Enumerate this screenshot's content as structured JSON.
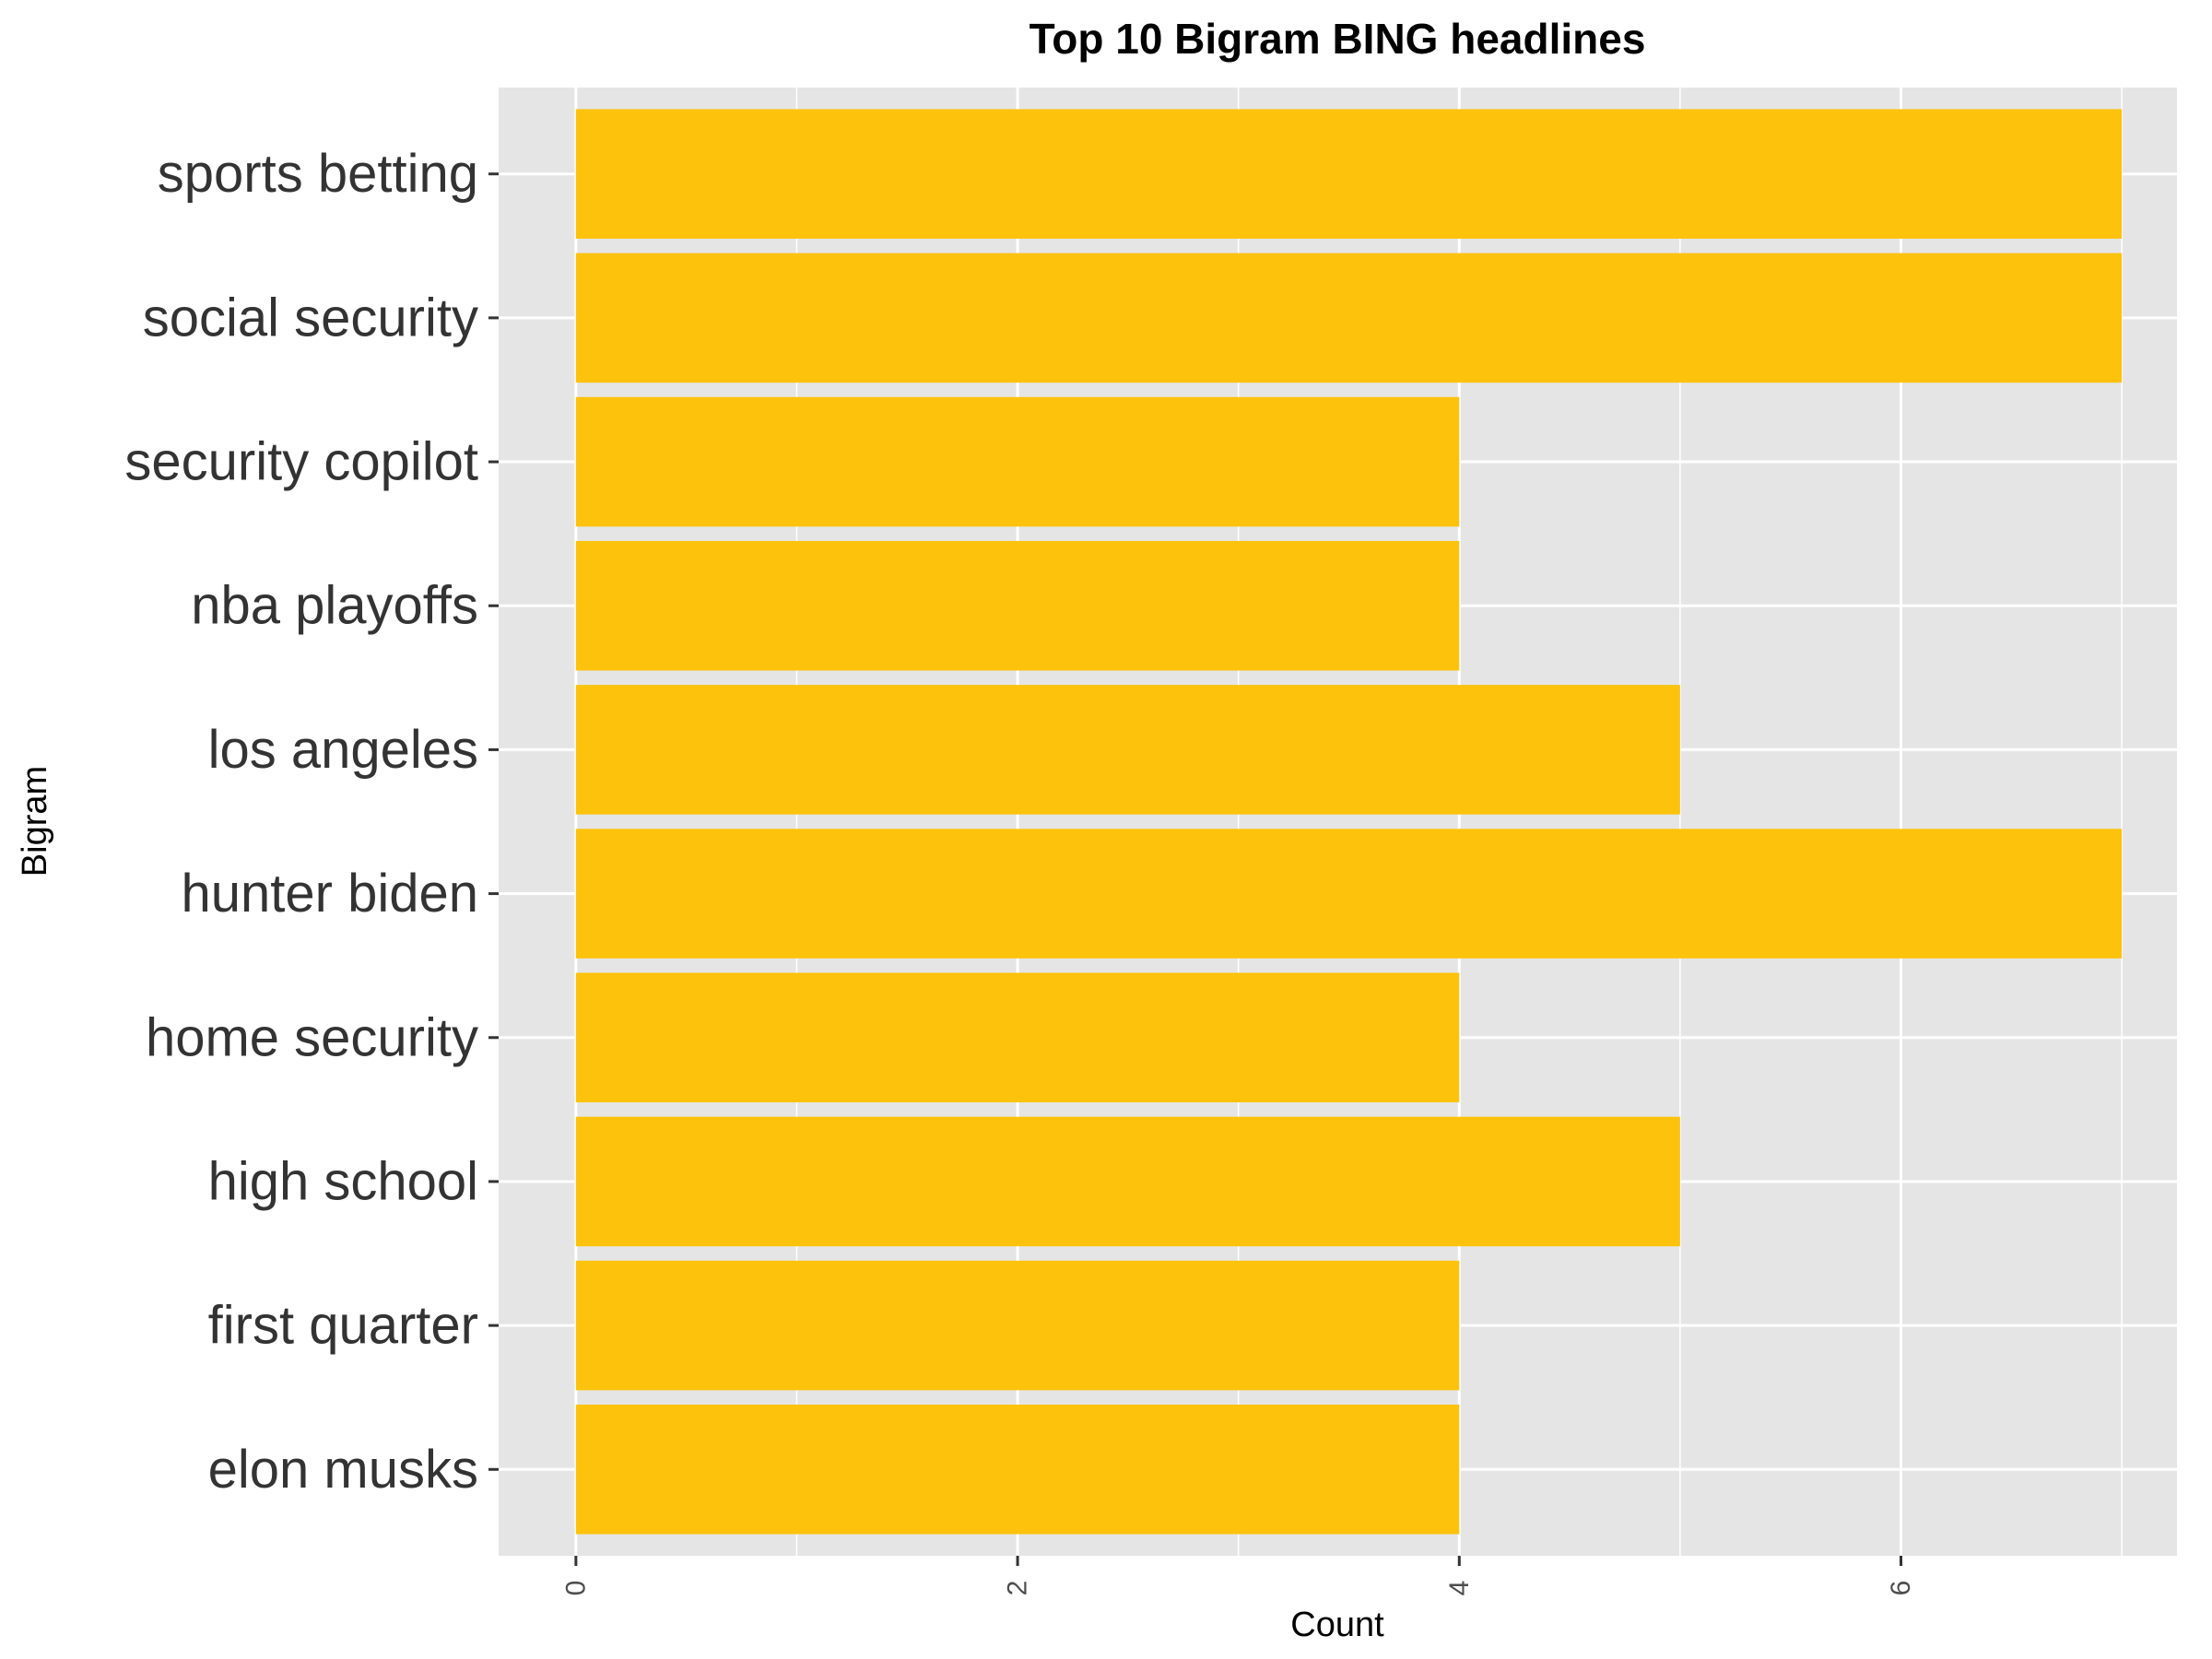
{
  "chart_data": {
    "type": "bar",
    "orientation": "horizontal",
    "title": "Top 10 Bigram BING headlines",
    "xlabel": "Count",
    "ylabel": "Bigram",
    "categories": [
      "sports betting",
      "social security",
      "security copilot",
      "nba playoffs",
      "los angeles",
      "hunter biden",
      "home security",
      "high school",
      "first quarter",
      "elon musks"
    ],
    "values": [
      7,
      7,
      4,
      4,
      5,
      7,
      4,
      5,
      4,
      4
    ],
    "x_ticks": [
      "0",
      "2",
      "4",
      "6"
    ],
    "xlim": [
      -0.35,
      7.25
    ],
    "grid": true,
    "bar_color": "#fdc20c",
    "panel_color": "#e5e5e5",
    "grid_color": "#ffffff"
  }
}
